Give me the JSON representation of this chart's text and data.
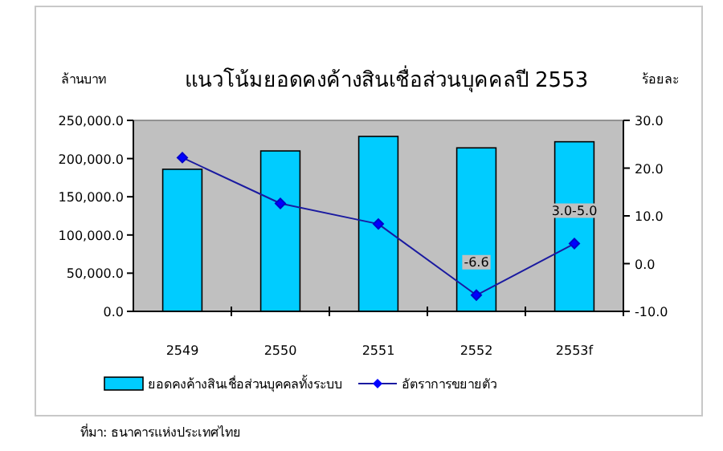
{
  "chart_data": {
    "type": "bar",
    "title": "แนวโน้มยอดคงค้างสินเชื่อส่วนบุคคลปี 2553",
    "ylabel": "ล้านบาท",
    "y2label": "ร้อยละ",
    "categories": [
      "2549",
      "2550",
      "2551",
      "2552",
      "2553f"
    ],
    "series": [
      {
        "name": "ยอดคงค้างสินเชื่อส่วนบุคคลทั้งระบบ",
        "color": "#00ccff",
        "values": [
          186000,
          210000,
          229000,
          214000,
          222000
        ]
      },
      {
        "name": "อัตราการขยายตัว",
        "type": "line",
        "axis": "y2",
        "color": "#1a1aa0",
        "marker": "diamond",
        "values": [
          22.2,
          12.6,
          8.3,
          -6.6,
          4.2
        ],
        "value_labels": [
          null,
          null,
          null,
          "-6.6",
          "3.0-5.0"
        ]
      }
    ],
    "ylim": [
      0,
      250000
    ],
    "yticks": [
      {
        "value": 0,
        "label": "0.0"
      },
      {
        "value": 50000,
        "label": "50,000.0"
      },
      {
        "value": 100000,
        "label": "100,000.0"
      },
      {
        "value": 150000,
        "label": "150,000.0"
      },
      {
        "value": 200000,
        "label": "200,000.0"
      },
      {
        "value": 250000,
        "label": "250,000.0"
      }
    ],
    "y2lim": [
      -10,
      30
    ],
    "y2ticks": [
      {
        "value": -10,
        "label": "-10.0"
      },
      {
        "value": 0,
        "label": "0.0"
      },
      {
        "value": 10,
        "label": "10.0"
      },
      {
        "value": 20,
        "label": "20.0"
      },
      {
        "value": 30,
        "label": "30.0"
      }
    ],
    "grid": false,
    "legend": "bottom",
    "annotations": [
      "ที่มา: ธนาคารแห่งประเทศไทย"
    ]
  }
}
